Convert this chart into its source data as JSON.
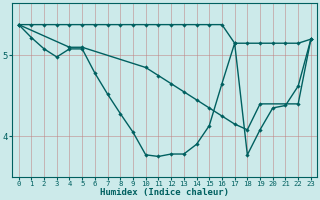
{
  "xlabel": "Humidex (Indice chaleur)",
  "bg_color": "#cceaea",
  "line_color": "#006060",
  "grid_color": "#c08080",
  "xlim": [
    -0.5,
    23.5
  ],
  "ylim": [
    3.5,
    5.65
  ],
  "yticks": [
    4,
    5
  ],
  "xticks": [
    0,
    1,
    2,
    3,
    4,
    5,
    6,
    7,
    8,
    9,
    10,
    11,
    12,
    13,
    14,
    15,
    16,
    17,
    18,
    19,
    20,
    21,
    22,
    23
  ],
  "line_flat_x": [
    0,
    1,
    2,
    3,
    4,
    5,
    6,
    7,
    8,
    9,
    10,
    11,
    12,
    13,
    14,
    15,
    16,
    17,
    18,
    19,
    20,
    21,
    22,
    23
  ],
  "line_flat_y": [
    5.38,
    5.38,
    5.38,
    5.38,
    5.38,
    5.38,
    5.38,
    5.38,
    5.38,
    5.38,
    5.38,
    5.38,
    5.38,
    5.38,
    5.38,
    5.38,
    5.38,
    5.15,
    5.15,
    5.15,
    5.15,
    5.15,
    5.15,
    5.2
  ],
  "line_diag_x": [
    0,
    4,
    5,
    10,
    11,
    12,
    13,
    14,
    15,
    16,
    17,
    18,
    19,
    22,
    23
  ],
  "line_diag_y": [
    5.38,
    5.1,
    5.1,
    4.85,
    4.75,
    4.65,
    4.55,
    4.45,
    4.35,
    4.25,
    4.15,
    4.08,
    4.4,
    4.4,
    5.2
  ],
  "line_curve_x": [
    0,
    1,
    2,
    3,
    4,
    5,
    6,
    7,
    8,
    9,
    10,
    11,
    12,
    13,
    14,
    15,
    16,
    17,
    18,
    19,
    20,
    21,
    22,
    23
  ],
  "line_curve_y": [
    5.38,
    5.22,
    5.08,
    4.98,
    5.08,
    5.08,
    4.78,
    4.52,
    4.28,
    4.05,
    3.77,
    3.75,
    3.78,
    3.78,
    3.9,
    4.13,
    4.65,
    5.15,
    3.77,
    4.08,
    4.35,
    4.38,
    4.62,
    5.2
  ]
}
